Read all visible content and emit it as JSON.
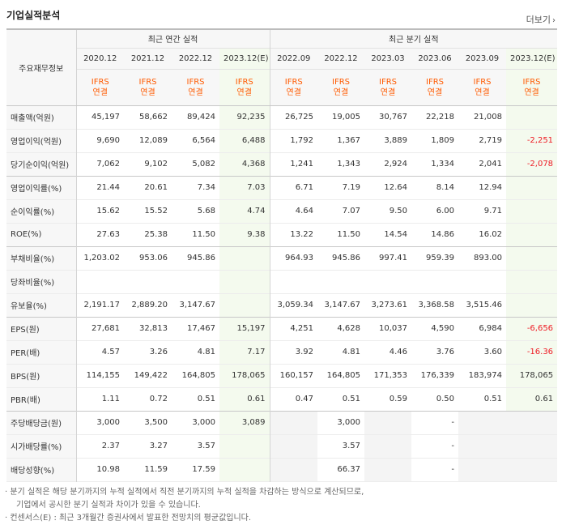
{
  "title": "기업실적분석",
  "more": {
    "label": "더보기",
    "icon": "chevron-right-icon"
  },
  "header": {
    "corner": "주요재무정보",
    "annual_group": "최근 연간 실적",
    "quarter_group": "최근 분기 실적",
    "periods": [
      "2020.12",
      "2021.12",
      "2022.12",
      "2023.12(E)",
      "2022.09",
      "2022.12",
      "2023.03",
      "2023.06",
      "2023.09",
      "2023.12(E)"
    ],
    "basis_top": "IFRS",
    "basis_bottom": "연결"
  },
  "rows": [
    {
      "label": "매출액(억원)",
      "values": [
        "45,197",
        "58,662",
        "89,424",
        "92,235",
        "26,725",
        "19,005",
        "30,767",
        "22,218",
        "21,008",
        ""
      ]
    },
    {
      "label": "영업이익(억원)",
      "values": [
        "9,690",
        "12,089",
        "6,564",
        "6,488",
        "1,792",
        "1,367",
        "3,889",
        "1,809",
        "2,719",
        "-2,251"
      ]
    },
    {
      "label": "당기순이익(억원)",
      "values": [
        "7,062",
        "9,102",
        "5,082",
        "4,368",
        "1,241",
        "1,343",
        "2,924",
        "1,334",
        "2,041",
        "-2,078"
      ]
    },
    {
      "label": "영업이익률(%)",
      "values": [
        "21.44",
        "20.61",
        "7.34",
        "7.03",
        "6.71",
        "7.19",
        "12.64",
        "8.14",
        "12.94",
        ""
      ]
    },
    {
      "label": "순이익률(%)",
      "values": [
        "15.62",
        "15.52",
        "5.68",
        "4.74",
        "4.64",
        "7.07",
        "9.50",
        "6.00",
        "9.71",
        ""
      ]
    },
    {
      "label": "ROE(%)",
      "values": [
        "27.63",
        "25.38",
        "11.50",
        "9.38",
        "13.22",
        "11.50",
        "14.54",
        "14.86",
        "16.02",
        ""
      ]
    },
    {
      "label": "부채비율(%)",
      "values": [
        "1,203.02",
        "953.06",
        "945.86",
        "",
        "964.93",
        "945.86",
        "997.41",
        "959.39",
        "893.00",
        ""
      ]
    },
    {
      "label": "당좌비율(%)",
      "values": [
        "",
        "",
        "",
        "",
        "",
        "",
        "",
        "",
        "",
        ""
      ]
    },
    {
      "label": "유보율(%)",
      "values": [
        "2,191.17",
        "2,889.20",
        "3,147.67",
        "",
        "3,059.34",
        "3,147.67",
        "3,273.61",
        "3,368.58",
        "3,515.46",
        ""
      ]
    },
    {
      "label": "EPS(원)",
      "values": [
        "27,681",
        "32,813",
        "17,467",
        "15,197",
        "4,251",
        "4,628",
        "10,037",
        "4,590",
        "6,984",
        "-6,656"
      ]
    },
    {
      "label": "PER(배)",
      "values": [
        "4.57",
        "3.26",
        "4.81",
        "7.17",
        "3.92",
        "4.81",
        "4.46",
        "3.76",
        "3.60",
        "-16.36"
      ]
    },
    {
      "label": "BPS(원)",
      "values": [
        "114,155",
        "149,422",
        "164,805",
        "178,065",
        "160,157",
        "164,805",
        "171,353",
        "176,339",
        "183,974",
        "178,065"
      ]
    },
    {
      "label": "PBR(배)",
      "values": [
        "1.11",
        "0.72",
        "0.51",
        "0.61",
        "0.47",
        "0.51",
        "0.59",
        "0.50",
        "0.51",
        "0.61"
      ]
    },
    {
      "label": "주당배당금(원)",
      "values": [
        "3,000",
        "3,500",
        "3,000",
        "3,089",
        "",
        "3,000",
        "",
        "-",
        "",
        ""
      ]
    },
    {
      "label": "시가배당률(%)",
      "values": [
        "2.37",
        "3.27",
        "3.57",
        "",
        "",
        "3.57",
        "",
        "-",
        "",
        ""
      ]
    },
    {
      "label": "배당성향(%)",
      "values": [
        "10.98",
        "11.59",
        "17.59",
        "",
        "",
        "66.37",
        "",
        "-",
        "",
        ""
      ]
    }
  ],
  "notes": {
    "line1": "분기 실적은 해당 분기까지의 누적 실적에서 직전 분기까지의 누적 실적을 차감하는 방식으로 계산되므로,",
    "line2": "기업에서 공시한 분기 실적과 차이가 있을 수 있습니다.",
    "line3": "컨센서스(E) : 최근 3개월간 증권사에서 발표한 전망치의 평균값입니다."
  },
  "colors": {
    "estimate_bg": "#f4faee",
    "basis_text": "#ff5a00",
    "negative": "#ee1c25",
    "header_bg": "#f7f7f7"
  }
}
